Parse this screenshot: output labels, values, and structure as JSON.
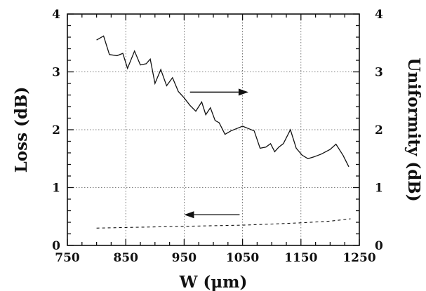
{
  "chart_data": {
    "type": "line",
    "title": "",
    "xlabel": "W (μm)",
    "ylabel": "Loss (dB)",
    "y2label": "Uniformity (dB)",
    "xlim": [
      750,
      1250
    ],
    "ylim": [
      0,
      4
    ],
    "y2lim": [
      0,
      4
    ],
    "grid": true,
    "legend": "none",
    "x_ticks": [
      "750",
      "850",
      "950",
      "1050",
      "1150",
      "1250"
    ],
    "y_ticks": [
      "0",
      "1",
      "2",
      "3",
      "4"
    ],
    "y2_ticks": [
      "0",
      "1",
      "2",
      "3",
      "4"
    ],
    "series": [
      {
        "axis": "right",
        "style": "solid",
        "x": [
          800,
          812,
          822,
          835,
          845,
          853,
          865,
          875,
          885,
          892,
          900,
          910,
          920,
          930,
          940,
          950,
          960,
          970,
          980,
          987,
          995,
          1003,
          1010,
          1020,
          1030,
          1040,
          1050,
          1060,
          1070,
          1080,
          1090,
          1098,
          1105,
          1112,
          1120,
          1132,
          1142,
          1152,
          1162,
          1172,
          1185,
          1200,
          1210,
          1222,
          1232
        ],
        "values": [
          3.55,
          3.62,
          3.3,
          3.28,
          3.32,
          3.06,
          3.36,
          3.12,
          3.14,
          3.22,
          2.8,
          3.04,
          2.76,
          2.9,
          2.66,
          2.55,
          2.42,
          2.32,
          2.48,
          2.26,
          2.38,
          2.16,
          2.12,
          1.92,
          1.98,
          2.02,
          2.06,
          2.02,
          1.98,
          1.68,
          1.7,
          1.76,
          1.62,
          1.7,
          1.76,
          2.0,
          1.68,
          1.56,
          1.5,
          1.53,
          1.58,
          1.66,
          1.75,
          1.56,
          1.36
        ]
      },
      {
        "axis": "left",
        "style": "dashed",
        "x": [
          800,
          850,
          900,
          950,
          1000,
          1050,
          1100,
          1150,
          1200,
          1235
        ],
        "values": [
          0.3,
          0.31,
          0.32,
          0.33,
          0.34,
          0.35,
          0.37,
          0.39,
          0.42,
          0.46
        ]
      }
    ],
    "arrows": [
      {
        "from": [
          960,
          2.65
        ],
        "to": [
          1060,
          2.65
        ],
        "points_to": "right"
      },
      {
        "from": [
          1045,
          0.53
        ],
        "to": [
          950,
          0.53
        ],
        "points_to": "left"
      }
    ]
  }
}
